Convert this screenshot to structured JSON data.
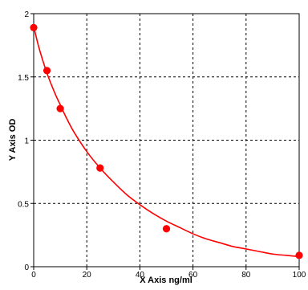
{
  "chart_data": {
    "type": "scatter",
    "title": "",
    "xlabel": "X Axis ng/ml",
    "ylabel": "Y Axis OD",
    "xlim": [
      0,
      100
    ],
    "ylim": [
      0,
      2
    ],
    "x_ticks": [
      0,
      20,
      40,
      60,
      80,
      100
    ],
    "y_ticks": [
      0,
      0.5,
      1,
      1.5,
      2
    ],
    "x_tick_labels": [
      "0",
      "20",
      "40",
      "60",
      "80",
      "100"
    ],
    "y_tick_labels": [
      "0",
      "0.5",
      "1",
      "1.5",
      "2"
    ],
    "grid": true,
    "series": [
      {
        "kind": "points",
        "x": [
          0,
          5,
          10,
          25,
          50,
          100
        ],
        "y": [
          1.89,
          1.55,
          1.25,
          0.78,
          0.3,
          0.09
        ]
      },
      {
        "kind": "fit-curve",
        "x": [
          0,
          2,
          5,
          8,
          10,
          12,
          15,
          20,
          25,
          30,
          35,
          40,
          45,
          50,
          55,
          60,
          65,
          70,
          75,
          80,
          85,
          90,
          95,
          100
        ],
        "y": [
          1.9,
          1.73,
          1.53,
          1.37,
          1.28,
          1.19,
          1.07,
          0.91,
          0.78,
          0.67,
          0.57,
          0.49,
          0.42,
          0.36,
          0.31,
          0.26,
          0.22,
          0.19,
          0.16,
          0.14,
          0.12,
          0.1,
          0.09,
          0.08
        ]
      }
    ],
    "colors": {
      "points": "#ff0000",
      "curve": "#ff0000",
      "grid": "#000000",
      "axis": "#000000"
    }
  }
}
